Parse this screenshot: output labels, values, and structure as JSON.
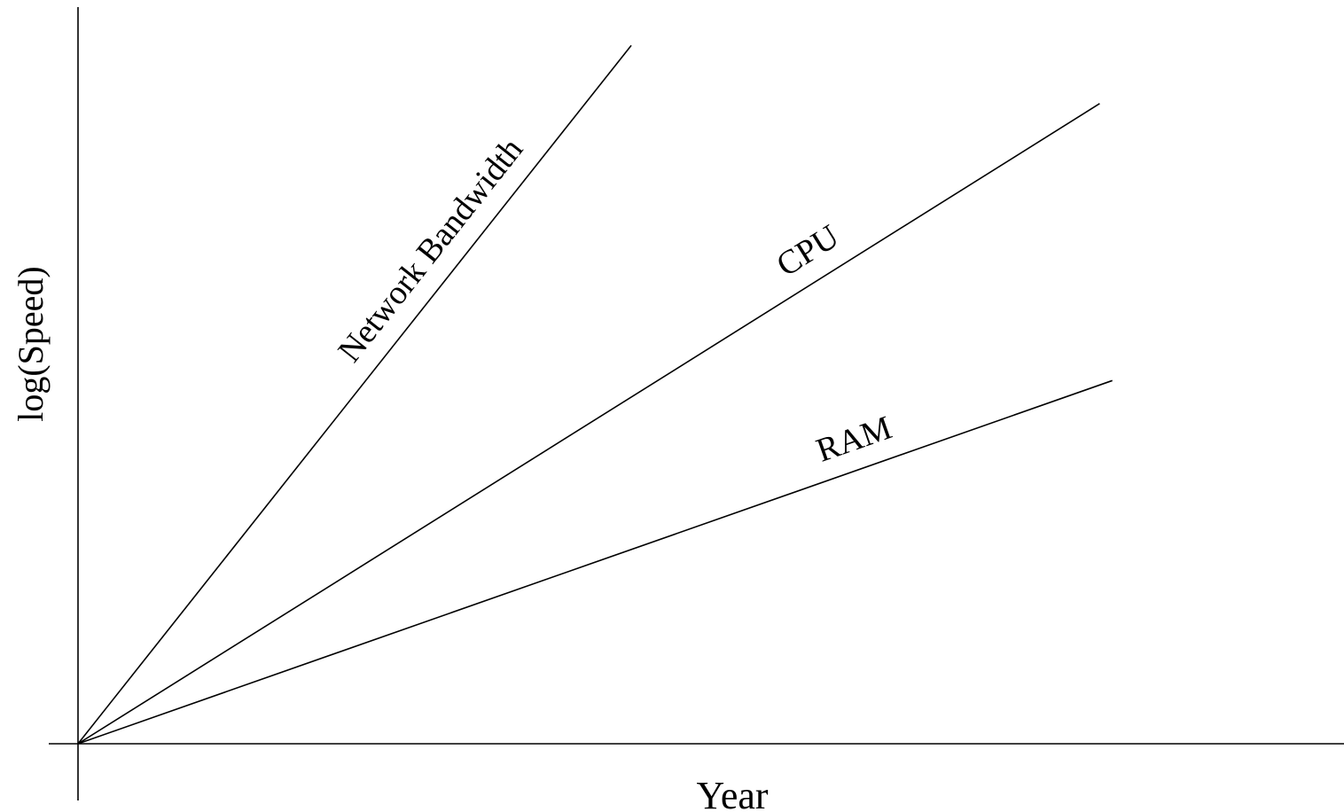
{
  "chart_data": {
    "type": "line",
    "title": "",
    "xlabel": "Year",
    "ylabel": "log(Speed)",
    "xlim": [
      0,
      100
    ],
    "ylim": [
      0,
      100
    ],
    "grid": false,
    "legend": "none",
    "line_color": "#000000",
    "series": [
      {
        "name": "Network Bandwidth",
        "x": [
          0,
          43.7
        ],
        "y": [
          0,
          94.8
        ]
      },
      {
        "name": "CPU",
        "x": [
          0,
          80.7
        ],
        "y": [
          0,
          86.9
        ]
      },
      {
        "name": "RAM",
        "x": [
          0,
          81.7
        ],
        "y": [
          0,
          49.3
        ]
      }
    ]
  }
}
